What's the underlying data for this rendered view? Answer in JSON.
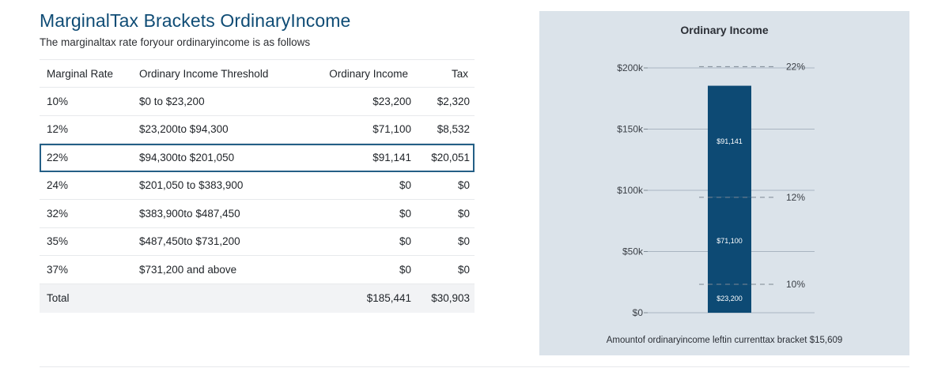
{
  "header": {
    "title": "MarginalTax Brackets OrdinaryIncome",
    "subtitle": "The marginaltax rate foryour ordinaryincome is as follows"
  },
  "table": {
    "columns": [
      "Marginal Rate",
      "Ordinary  Income  Threshold",
      "Ordinary  Income",
      "Tax"
    ],
    "rows": [
      {
        "rate": "10%",
        "threshold": "$0 to $23,200",
        "income": "$23,200",
        "tax": "$2,320",
        "selected": false
      },
      {
        "rate": "12%",
        "threshold": "$23,200to $94,300",
        "income": "$71,100",
        "tax": "$8,532",
        "selected": false
      },
      {
        "rate": "22%",
        "threshold": "$94,300to $201,050",
        "income": "$91,141",
        "tax": "$20,051",
        "selected": true
      },
      {
        "rate": "24%",
        "threshold": "$201,050 to $383,900",
        "income": "$0",
        "tax": "$0",
        "selected": false
      },
      {
        "rate": "32%",
        "threshold": "$383,900to $487,450",
        "income": "$0",
        "tax": "$0",
        "selected": false
      },
      {
        "rate": "35%",
        "threshold": "$487,450to $731,200",
        "income": "$0",
        "tax": "$0",
        "selected": false
      },
      {
        "rate": "37%",
        "threshold": "$731,200 and above",
        "income": "$0",
        "tax": "$0",
        "selected": false
      }
    ],
    "total": {
      "label": "Total",
      "income": "$185,441",
      "tax": "$30,903"
    }
  },
  "chart": {
    "title": "Ordinary Income",
    "caption": "Amountof ordinaryincome leftin currenttax bracket $15,609",
    "colors": {
      "bar": "#0d4a74",
      "panel": "#dbe3ea",
      "grid": "#a9b5c1",
      "dash": "#7d8893",
      "text": "#3a3f46"
    }
  },
  "chart_data": {
    "type": "bar",
    "title": "Ordinary Income",
    "stacked": true,
    "categories": [
      ""
    ],
    "series": [
      {
        "values": [
          23200
        ],
        "label": "$23,200"
      },
      {
        "values": [
          71100
        ],
        "label": "$71,100"
      },
      {
        "values": [
          91141
        ],
        "label": "$91,141"
      }
    ],
    "ylim": [
      0,
      200000
    ],
    "yticks": [
      0,
      50000,
      100000,
      150000,
      200000
    ],
    "ytick_labels": [
      "$0",
      "$50k",
      "$100k",
      "$150k",
      "$200k"
    ],
    "thresholds": [
      {
        "value": 23200,
        "label": "10%"
      },
      {
        "value": 94300,
        "label": "12%"
      },
      {
        "value": 201050,
        "label": "22%"
      }
    ],
    "grid": true,
    "legend": "none"
  }
}
